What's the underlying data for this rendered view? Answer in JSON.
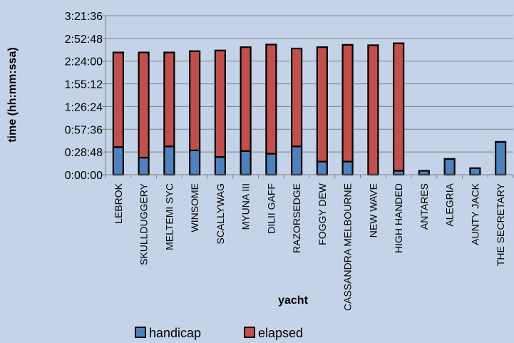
{
  "chart_data": {
    "type": "bar",
    "stacked": true,
    "title": "",
    "xlabel": "yacht",
    "ylabel": "time (hh:mm:ssa)",
    "ylim_seconds": [
      0,
      12096
    ],
    "y_ticks": [
      "0:00:00",
      "0:28:48",
      "0:57:36",
      "1:26:24",
      "1:55:12",
      "2:24:00",
      "2:52:48",
      "3:21:36"
    ],
    "y_tick_seconds": [
      0,
      1728,
      3456,
      5184,
      6912,
      8640,
      10368,
      12096
    ],
    "grid": true,
    "legend_position": "bottom",
    "categories": [
      "LEBROK",
      "SKULLDUGGERY",
      "MELTEMI SYC",
      "WINSOME",
      "SCALLYWAG",
      "MYUNA III",
      "DILII GAFF",
      "RAZORSEDGE",
      "FOGGY DEW",
      "CASSANDRA MELBOURNE",
      "NEW WAVE",
      "HIGH HANDED",
      "ANTARES",
      "ALEGRIA",
      "AUNTY JACK",
      "THE SECRETARY"
    ],
    "series": [
      {
        "name": "handicap",
        "color": "#4f81bd",
        "values_seconds": [
          2100,
          1300,
          2150,
          1850,
          1350,
          1800,
          1600,
          2150,
          1000,
          1000,
          0,
          300,
          300,
          1200,
          500,
          2500
        ]
      },
      {
        "name": "elapsed",
        "color": "#c0504d",
        "values_seconds": [
          7200,
          8000,
          7150,
          7550,
          8100,
          7900,
          8300,
          7450,
          8700,
          8880,
          9850,
          9700,
          0,
          0,
          0,
          0
        ]
      }
    ]
  }
}
